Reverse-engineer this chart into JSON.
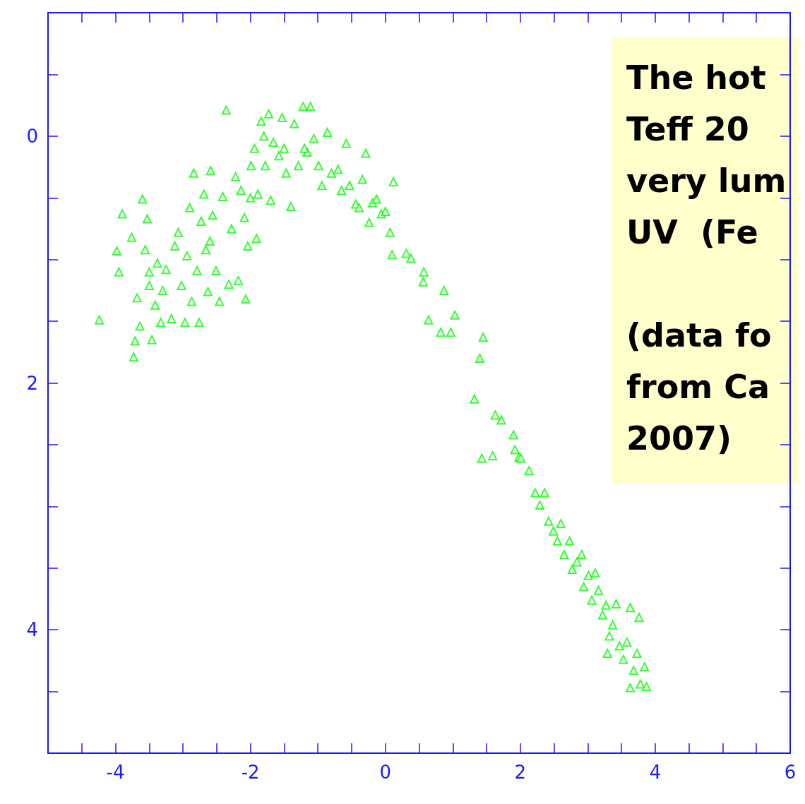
{
  "chart_data": {
    "type": "scatter",
    "marker": "triangle",
    "annotations": [
      "The hot\nTeff 20\nvery lum\nUV  (Fe\n\n(data fo\nfrom Ca\n2007)"
    ],
    "xlim": [
      -5,
      6
    ],
    "xticks": [
      {
        "value": -4.5,
        "label": null
      },
      -4,
      {
        "value": -3.5,
        "label": null
      },
      {
        "value": -3,
        "label": null
      },
      {
        "value": -2.5,
        "label": null
      },
      -2,
      {
        "value": -1.5,
        "label": null
      },
      {
        "value": -1,
        "label": null
      },
      {
        "value": -0.5,
        "label": null
      },
      0,
      {
        "value": 0.5,
        "label": null
      },
      {
        "value": 1,
        "label": null
      },
      {
        "value": 1.5,
        "label": null
      },
      2,
      {
        "value": 2.5,
        "label": null
      },
      {
        "value": 3,
        "label": null
      },
      {
        "value": 3.5,
        "label": null
      },
      4,
      {
        "value": 4.5,
        "label": null
      },
      {
        "value": 5,
        "label": null
      },
      {
        "value": 5.5,
        "label": null
      },
      6
    ],
    "ylim": [
      5,
      -1
    ],
    "yticks": [
      {
        "value": -0.5,
        "label": null
      },
      0,
      {
        "value": 0.5,
        "label": null
      },
      {
        "value": 1,
        "label": null
      },
      {
        "value": 1.5,
        "label": null
      },
      2,
      {
        "value": 2.5,
        "label": null
      },
      {
        "value": 3,
        "label": null
      },
      {
        "value": 3.5,
        "label": null
      },
      4,
      {
        "value": 4.5,
        "label": null
      }
    ],
    "series": [
      {
        "color": "#00ff00",
        "x": [
          -4.24,
          -3.9,
          -3.98,
          -3.95,
          -3.76,
          -3.73,
          -3.71,
          -3.68,
          -3.64,
          -3.6,
          -3.56,
          -3.53,
          -3.5,
          -3.46,
          -3.41,
          -3.38,
          -3.33,
          -3.25,
          -3.17,
          -3.12,
          -3.07,
          -3.02,
          -2.97,
          -2.94,
          -2.9,
          -2.87,
          -2.84,
          -2.79,
          -2.76,
          -2.73,
          -2.69,
          -2.66,
          -2.63,
          -2.59,
          -2.56,
          -2.51,
          -2.46,
          -2.41,
          -2.36,
          -2.32,
          -2.28,
          -2.22,
          -2.18,
          -2.14,
          -2.09,
          -2.07,
          -2.04,
          -1.99,
          -1.94,
          -1.91,
          -1.89,
          -1.84,
          -1.78,
          -1.73,
          -1.7,
          -1.66,
          -1.58,
          -1.53,
          -1.47,
          -1.4,
          -1.35,
          -1.29,
          -1.22,
          -1.16,
          -1.11,
          -1.06,
          -0.99,
          -0.94,
          -0.86,
          -0.8,
          -0.7,
          -0.65,
          -0.58,
          -0.53,
          -0.44,
          -0.39,
          -0.34,
          -0.29,
          -0.24,
          -0.19,
          -0.13,
          -0.06,
          0,
          0.07,
          0.12,
          0.1,
          0.31,
          0.38,
          0.57,
          0.56,
          0.64,
          0.82,
          0.87,
          1.03,
          0.97,
          1.32,
          1.4,
          1.45,
          1.43,
          1.59,
          1.63,
          1.72,
          1.9,
          1.92,
          1.98,
          2.01,
          2.13,
          2.22,
          2.29,
          2.36,
          2.42,
          2.49,
          2.55,
          2.6,
          2.65,
          2.73,
          2.77,
          2.84,
          2.91,
          2.94,
          3.01,
          3.06,
          3.11,
          3.16,
          3.22,
          3.27,
          3.29,
          3.32,
          3.37,
          3.42,
          3.47,
          3.53,
          3.58,
          3.63,
          3.63,
          3.68,
          3.73,
          3.78,
          3.84,
          3.87,
          3.76,
          -1.5,
          -1.8,
          -1.2,
          -2.0,
          -2.6,
          -3.5,
          -3.3
        ],
        "values": [
          1.49,
          0.63,
          0.93,
          1.1,
          0.82,
          1.79,
          1.66,
          1.31,
          1.54,
          0.51,
          0.92,
          0.67,
          1.21,
          1.65,
          1.37,
          1.03,
          1.51,
          1.08,
          1.48,
          0.89,
          0.78,
          1.21,
          1.51,
          0.97,
          0.58,
          1.34,
          0.3,
          1.09,
          1.51,
          0.69,
          0.47,
          0.92,
          1.26,
          0.28,
          0.64,
          1.09,
          1.34,
          0.49,
          -0.21,
          1.2,
          0.75,
          0.33,
          1.17,
          0.44,
          0.66,
          1.32,
          0.89,
          0.24,
          0.1,
          0.83,
          0.47,
          -0.12,
          0.24,
          -0.18,
          0.52,
          0.05,
          0.16,
          -0.15,
          0.3,
          0.57,
          -0.1,
          0.24,
          -0.24,
          0.13,
          -0.24,
          0.02,
          0.24,
          0.4,
          -0.03,
          0.3,
          0.27,
          0.44,
          0.06,
          0.4,
          0.55,
          0.58,
          0.35,
          0.14,
          0.7,
          0.54,
          0.51,
          0.63,
          0.61,
          0.78,
          0.37,
          0.96,
          0.95,
          0.99,
          1.1,
          1.18,
          1.49,
          1.59,
          1.25,
          1.45,
          1.59,
          2.13,
          1.8,
          1.63,
          2.61,
          2.59,
          2.26,
          2.3,
          2.42,
          2.54,
          2.6,
          2.61,
          2.71,
          2.89,
          2.99,
          2.89,
          3.12,
          3.2,
          3.28,
          3.14,
          3.39,
          3.28,
          3.51,
          3.45,
          3.39,
          3.65,
          3.56,
          3.76,
          3.54,
          3.68,
          3.88,
          3.8,
          4.19,
          4.05,
          3.96,
          3.79,
          4.13,
          4.24,
          4.1,
          3.82,
          4.47,
          4.33,
          4.19,
          4.44,
          4.3,
          4.46,
          3.9,
          0.1,
          0.0,
          0.1,
          0.5,
          0.85,
          1.1,
          1.25
        ]
      }
    ]
  }
}
